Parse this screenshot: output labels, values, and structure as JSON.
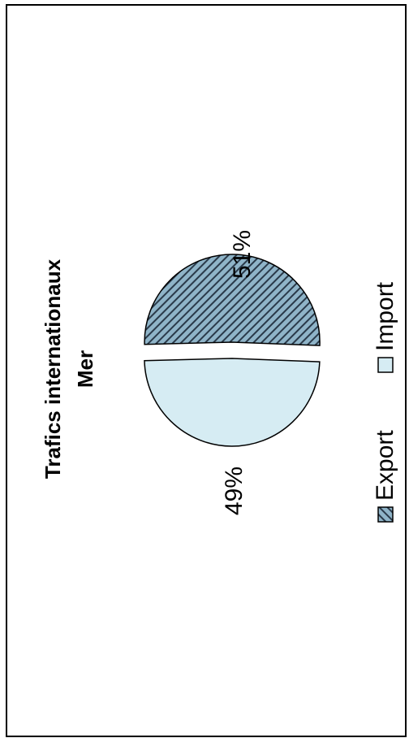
{
  "chart_data": {
    "type": "pie",
    "title_lines": [
      "Trafics internationaux",
      "Mer"
    ],
    "slices": [
      {
        "name": "Export",
        "value": 51,
        "label": "51%",
        "color": "#8fb4c8",
        "pattern": "diagonal-hatch"
      },
      {
        "name": "Import",
        "value": 49,
        "label": "49%",
        "color": "#d6ecf3",
        "pattern": "solid"
      }
    ],
    "legend": {
      "placement": "bottom",
      "items": [
        {
          "name": "Export",
          "color": "#8fb4c8",
          "pattern": "diagonal-hatch"
        },
        {
          "name": "Import",
          "color": "#d6ecf3",
          "pattern": "solid"
        }
      ]
    },
    "orientation": "rotated-90-ccw"
  },
  "colors": {
    "hatch_line": "#2a3a4a",
    "outline": "#000000",
    "background": "#ffffff"
  }
}
